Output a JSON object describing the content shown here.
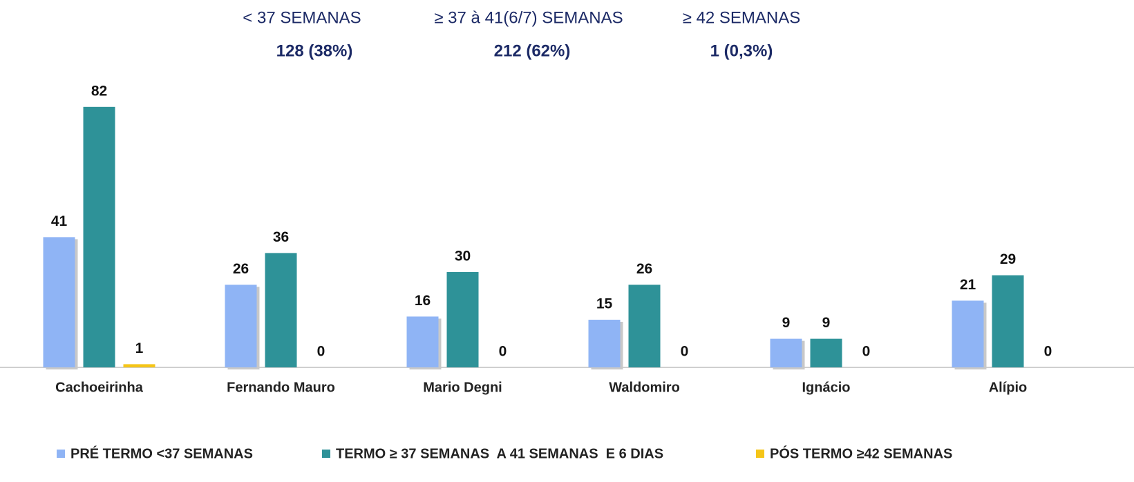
{
  "chart_data": {
    "type": "bar",
    "summary": [
      {
        "label": "< 37 SEMANAS",
        "value_label": "128 (38%)"
      },
      {
        "label": "≥ 37 à 41(6/7) SEMANAS",
        "value_label": "212 (62%)"
      },
      {
        "label": "≥ 42 SEMANAS",
        "value_label": "1 (0,3%)"
      }
    ],
    "categories": [
      "Cachoeirinha",
      "Fernando Mauro",
      "Mario Degni",
      "Waldomiro",
      "Ignácio",
      "Alípio"
    ],
    "series": [
      {
        "name": "PRÉ TERMO <37 SEMANAS",
        "color": "#8fb4f5",
        "values": [
          41,
          26,
          16,
          15,
          9,
          21
        ]
      },
      {
        "name": "TERMO ≥ 37 SEMANAS  A 41 SEMANAS  E 6 DIAS",
        "color": "#2e9298",
        "values": [
          82,
          36,
          30,
          26,
          9,
          29
        ]
      },
      {
        "name": "PÓS TERMO ≥42 SEMANAS",
        "color": "#f5c518",
        "values": [
          1,
          0,
          0,
          0,
          0,
          0
        ]
      }
    ],
    "ylim": [
      0,
      90
    ]
  }
}
